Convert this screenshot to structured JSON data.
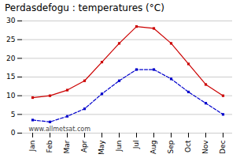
{
  "chart_data": {
    "type": "line",
    "title": "Perdasdefogu : temperatures (°C)",
    "categories": [
      "Jan",
      "Feb",
      "Mar",
      "Apr",
      "May",
      "Jun",
      "Jul",
      "Aug",
      "Sep",
      "Oct",
      "Nov",
      "Dec"
    ],
    "series": [
      {
        "color": "#cc0000",
        "marker": "square",
        "line_style": "solid",
        "values": [
          9.5,
          10.0,
          11.5,
          14.0,
          19.0,
          24.0,
          28.5,
          28.0,
          24.0,
          18.5,
          13.0,
          10.0
        ]
      },
      {
        "color": "#0000cc",
        "marker": "square",
        "line_style": "dashed",
        "values": [
          3.5,
          3.0,
          4.5,
          6.5,
          10.5,
          14.0,
          17.0,
          17.0,
          14.5,
          11.0,
          8.0,
          5.0
        ]
      }
    ],
    "ylim": [
      0,
      30
    ],
    "yticks": [
      0,
      5,
      10,
      15,
      20,
      25,
      30
    ],
    "grid": true,
    "annotations": [
      "www.allmetsat.com"
    ]
  }
}
